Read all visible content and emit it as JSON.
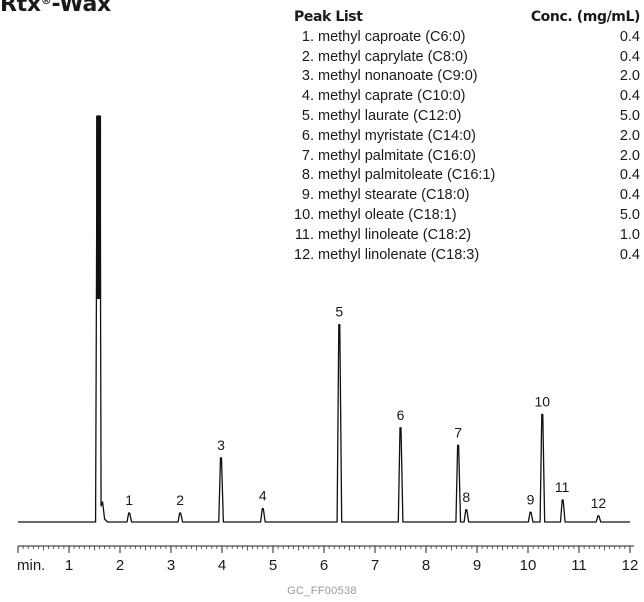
{
  "title": {
    "text": "Rtx",
    "reg": "®",
    "suffix": "-Wax"
  },
  "peak_list": {
    "header_name": "Peak List",
    "header_conc": "Conc. (mg/mL)",
    "items": [
      {
        "num": "1.",
        "name": "methyl caproate (C6:0)",
        "conc": "0.4"
      },
      {
        "num": "2.",
        "name": "methyl caprylate (C8:0)",
        "conc": "0.4"
      },
      {
        "num": "3.",
        "name": "methyl nonanoate (C9:0)",
        "conc": "2.0"
      },
      {
        "num": "4.",
        "name": "methyl caprate (C10:0)",
        "conc": "0.4"
      },
      {
        "num": "5.",
        "name": "methyl laurate (C12:0)",
        "conc": "5.0"
      },
      {
        "num": "6.",
        "name": "methyl myristate (C14:0)",
        "conc": "2.0"
      },
      {
        "num": "7.",
        "name": "methyl palmitate (C16:0)",
        "conc": "2.0"
      },
      {
        "num": "8.",
        "name": "methyl palmitoleate (C16:1)",
        "conc": "0.4"
      },
      {
        "num": "9.",
        "name": "methyl stearate (C18:0)",
        "conc": "0.4"
      },
      {
        "num": "10.",
        "name": "methyl oleate (C18:1)",
        "conc": "5.0"
      },
      {
        "num": "11.",
        "name": "methyl linoleate (C18:2)",
        "conc": "1.0"
      },
      {
        "num": "12.",
        "name": "methyl linolenate (C18:3)",
        "conc": "0.4"
      }
    ]
  },
  "chart_data": {
    "type": "line",
    "xlabel": "min.",
    "xlim": [
      0.0,
      12.0
    ],
    "x_ticks": [
      1,
      2,
      3,
      4,
      5,
      6,
      7,
      8,
      9,
      10,
      11,
      12
    ],
    "y_relative_max": 100,
    "solvent_peak": {
      "x": 1.58,
      "height": 100,
      "truncated": true
    },
    "peaks": [
      {
        "label": "1",
        "x": 2.18,
        "height": 2.2
      },
      {
        "label": "2",
        "x": 3.18,
        "height": 2.2
      },
      {
        "label": "3",
        "x": 3.98,
        "height": 15.8
      },
      {
        "label": "4",
        "x": 4.8,
        "height": 3.3
      },
      {
        "label": "5",
        "x": 6.3,
        "height": 48.6
      },
      {
        "label": "6",
        "x": 7.5,
        "height": 23.2
      },
      {
        "label": "7",
        "x": 8.63,
        "height": 18.9
      },
      {
        "label": "8",
        "x": 8.79,
        "height": 3.0
      },
      {
        "label": "9",
        "x": 10.05,
        "height": 2.4
      },
      {
        "label": "10",
        "x": 10.28,
        "height": 26.5
      },
      {
        "label": "11",
        "x": 10.68,
        "height": 5.4
      },
      {
        "label": "12",
        "x": 11.38,
        "height": 1.5
      }
    ]
  },
  "footer": "GC_FF00538"
}
